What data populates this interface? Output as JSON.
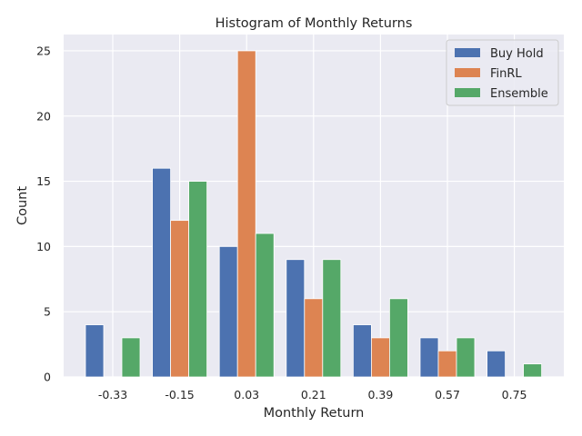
{
  "chart_data": {
    "type": "bar",
    "title": "Histogram of Monthly Returns",
    "xlabel": "Monthly Return",
    "ylabel": "Count",
    "categories": [
      "-0.33",
      "-0.15",
      "0.03",
      "0.21",
      "0.39",
      "0.57",
      "0.75"
    ],
    "series": [
      {
        "name": "Buy Hold",
        "color": "#4c72b0",
        "values": [
          4,
          16,
          10,
          9,
          4,
          3,
          2
        ]
      },
      {
        "name": "FinRL",
        "color": "#dd8452",
        "values": [
          0,
          12,
          25,
          6,
          3,
          2,
          0
        ]
      },
      {
        "name": "Ensemble",
        "color": "#55a868",
        "values": [
          3,
          15,
          11,
          9,
          6,
          3,
          1
        ]
      }
    ],
    "ylim": [
      0,
      26.25
    ],
    "yticks": [
      0,
      5,
      10,
      15,
      20,
      25
    ],
    "grid": true,
    "legend_position": "top-right",
    "background_color": "#eaeaf2",
    "grid_color": "#ffffff"
  }
}
